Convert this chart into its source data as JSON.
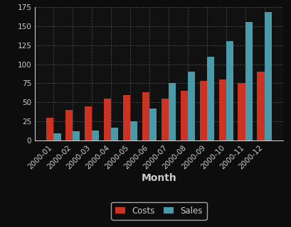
{
  "months": [
    "2000-01",
    "2000-02",
    "2000-03",
    "2000-04",
    "2000-05",
    "2000-06",
    "2000-07",
    "2000-08",
    "2000-09",
    "2000-10",
    "2000-11",
    "2000-12"
  ],
  "costs": [
    30,
    40,
    45,
    55,
    60,
    63,
    55,
    65,
    78,
    80,
    75,
    90
  ],
  "sales": [
    10,
    12,
    13,
    17,
    25,
    42,
    75,
    90,
    110,
    130,
    155,
    168
  ],
  "costs_color": "#cc3322",
  "sales_color": "#4a9aaa",
  "bg_color": "#0d0d0d",
  "plot_bg_color": "#111111",
  "grid_color": "#444444",
  "text_color": "#cccccc",
  "xlabel": "Month",
  "ylim": [
    0,
    175
  ],
  "yticks": [
    0,
    25,
    50,
    75,
    100,
    125,
    150,
    175
  ],
  "legend_costs": "Costs",
  "legend_sales": "Sales",
  "bar_width": 0.38,
  "tick_fontsize": 7.5,
  "label_fontsize": 10
}
